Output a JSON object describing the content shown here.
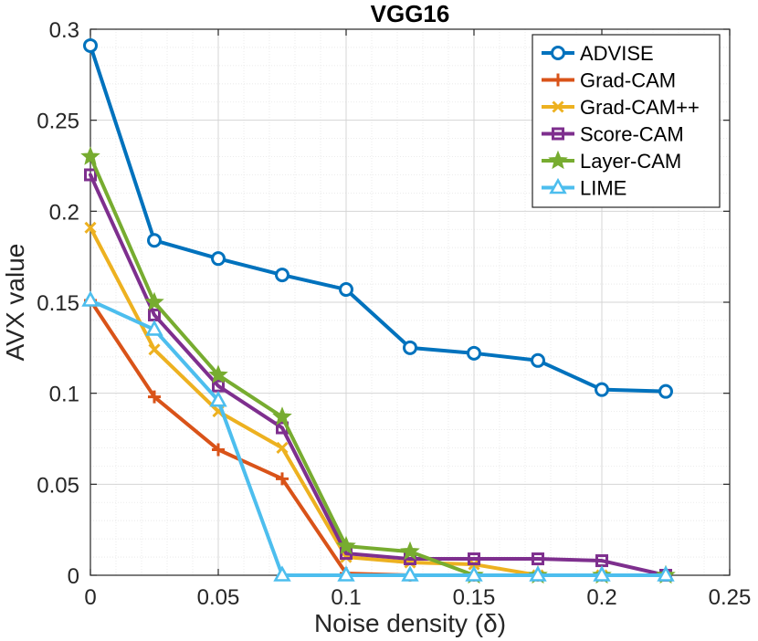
{
  "chart_data": {
    "type": "line",
    "title": "VGG16",
    "xlabel": "Noise density (δ)",
    "ylabel": "AVX value",
    "xlim": [
      0,
      0.25
    ],
    "ylim": [
      0,
      0.3
    ],
    "xticks": [
      0,
      0.05,
      0.1,
      0.15,
      0.2,
      0.25
    ],
    "xtick_labels": [
      "0",
      "0.05",
      "0.1",
      "0.15",
      "0.2",
      "0.25"
    ],
    "yticks": [
      0,
      0.05,
      0.1,
      0.15,
      0.2,
      0.25,
      0.3
    ],
    "ytick_labels": [
      "0",
      "0.05",
      "0.1",
      "0.15",
      "0.2",
      "0.25",
      "0.3"
    ],
    "grid": true,
    "legend_position": "top-right",
    "x": [
      0,
      0.025,
      0.05,
      0.075,
      0.1,
      0.125,
      0.15,
      0.175,
      0.2,
      0.225
    ],
    "series": [
      {
        "name": "ADVISE",
        "color": "#0072BD",
        "marker": "circle",
        "values": [
          0.291,
          0.184,
          0.174,
          0.165,
          0.157,
          0.125,
          0.122,
          0.118,
          0.102,
          0.101
        ]
      },
      {
        "name": "Grad-CAM",
        "color": "#D95319",
        "marker": "plus",
        "values": [
          0.151,
          0.098,
          0.069,
          0.053,
          0.001,
          0.0,
          0.0,
          0.0,
          0.0,
          0.0
        ]
      },
      {
        "name": "Grad-CAM++",
        "color": "#EDB120",
        "marker": "x",
        "values": [
          0.191,
          0.124,
          0.09,
          0.07,
          0.01,
          0.007,
          0.006,
          0.0,
          0.0,
          0.0
        ]
      },
      {
        "name": "Score-CAM",
        "color": "#7E2F8E",
        "marker": "square",
        "values": [
          0.22,
          0.143,
          0.104,
          0.081,
          0.012,
          0.009,
          0.009,
          0.009,
          0.008,
          0.0
        ]
      },
      {
        "name": "Layer-CAM",
        "color": "#77AC30",
        "marker": "star",
        "values": [
          0.23,
          0.15,
          0.11,
          0.087,
          0.016,
          0.013,
          0.0,
          0.0,
          0.0,
          0.0
        ]
      },
      {
        "name": "LIME",
        "color": "#4DBEEE",
        "marker": "triangle",
        "values": [
          0.151,
          0.135,
          0.096,
          0.0,
          0.0,
          0.0,
          0.0,
          0.0,
          0.0,
          0.0
        ]
      }
    ]
  }
}
